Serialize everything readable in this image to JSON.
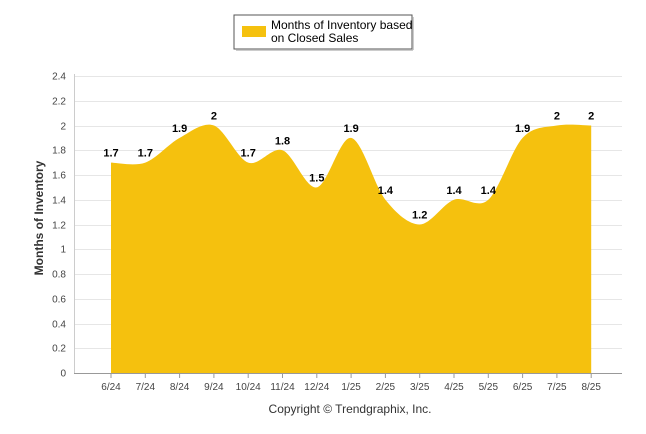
{
  "chart_data": {
    "type": "area",
    "title": "",
    "xlabel": "",
    "ylabel": "Months of Inventory",
    "categories": [
      "6/24",
      "7/24",
      "8/24",
      "9/24",
      "10/24",
      "11/24",
      "12/24",
      "1/25",
      "2/25",
      "3/25",
      "4/25",
      "5/25",
      "6/25",
      "7/25",
      "8/25"
    ],
    "series": [
      {
        "name": "Months of Inventory based on Closed Sales",
        "values": [
          1.7,
          1.7,
          1.9,
          2,
          1.7,
          1.8,
          1.5,
          1.9,
          1.4,
          1.2,
          1.4,
          1.4,
          1.9,
          2,
          2
        ],
        "data_labels": [
          "1.7",
          "1.7",
          "1.9",
          "2",
          "1.7",
          "1.8",
          "1.5",
          "1.9",
          "1.4",
          "1.2",
          "1.4",
          "1.4",
          "1.9",
          "2",
          "2"
        ],
        "color": "#F5C10E"
      }
    ],
    "ylim": [
      0,
      2.4
    ],
    "y_ticks": [
      0,
      0.2,
      0.4,
      0.6,
      0.8,
      1,
      1.2,
      1.4,
      1.6,
      1.8,
      2,
      2.2,
      2.4
    ],
    "y_tick_labels": [
      "0",
      "0.2",
      "0.4",
      "0.6",
      "0.8",
      "1",
      "1.2",
      "1.4",
      "1.6",
      "1.8",
      "2",
      "2.2",
      "2.4"
    ],
    "grid": true,
    "legend_position": "top-center",
    "legend": {
      "line1": "Months of Inventory based",
      "line2": "on Closed Sales"
    }
  },
  "footer": {
    "copyright": "Copyright © Trendgraphix, Inc."
  },
  "colors": {
    "area": "#F5C10E",
    "grid": "#e6e6e6"
  }
}
